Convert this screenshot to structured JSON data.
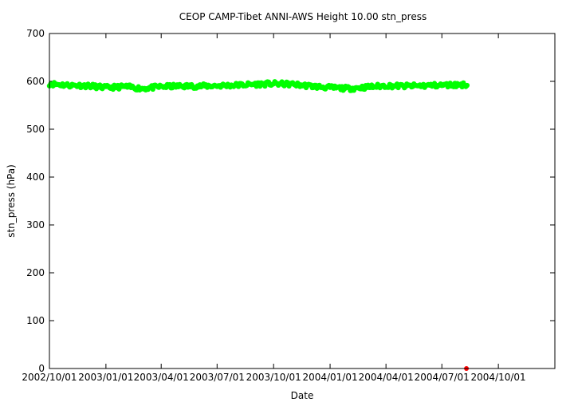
{
  "chart_data": {
    "type": "scatter",
    "title": "CEOP CAMP-Tibet ANNI-AWS Height 10.00 stn_press",
    "xlabel": "Date",
    "ylabel": "stn_press (hPa)",
    "ylim": [
      0,
      700
    ],
    "yticks": [
      0,
      100,
      200,
      300,
      400,
      500,
      600,
      700
    ],
    "xlim": [
      "2002-10-01",
      "2005-01-01"
    ],
    "xticks": [
      "2002/10/01",
      "2003/01/01",
      "2003/04/01",
      "2003/07/01",
      "2003/10/01",
      "2004/01/01",
      "2004/04/01",
      "2004/07/01",
      "2004/10/01"
    ],
    "grid": false,
    "series": [
      {
        "color": "#00ff00",
        "x": [
          "2002-10-01",
          "2002-11-01",
          "2002-12-01",
          "2003-01-01",
          "2003-02-01",
          "2003-03-01",
          "2003-04-01",
          "2003-05-01",
          "2003-06-01",
          "2003-07-01",
          "2003-08-01",
          "2003-09-01",
          "2003-10-01",
          "2003-11-01",
          "2003-12-01",
          "2004-01-01",
          "2004-02-01",
          "2004-03-01",
          "2004-04-01",
          "2004-05-01",
          "2004-06-01",
          "2004-07-01",
          "2004-08-01"
        ],
        "values": [
          595,
          592,
          591,
          587,
          589,
          585,
          589,
          590,
          590,
          591,
          592,
          594,
          595,
          594,
          590,
          587,
          585,
          588,
          591,
          590,
          591,
          592,
          593
        ]
      },
      {
        "color": "#ff0000",
        "x": [
          "2004-08-10"
        ],
        "values": [
          0
        ]
      }
    ]
  }
}
